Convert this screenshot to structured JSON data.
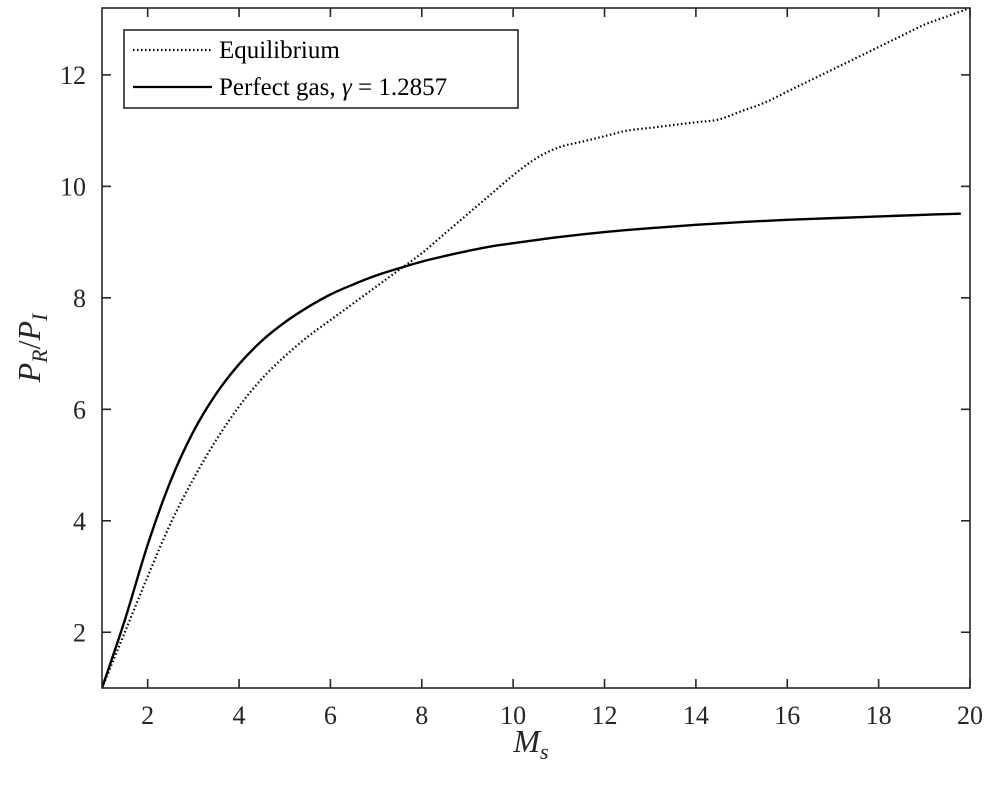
{
  "chart_data": {
    "type": "line",
    "title": "",
    "xlabel": {
      "main": "M",
      "sub": "s"
    },
    "ylabel": {
      "p1": "P",
      "s1": "R",
      "slash": "/",
      "p2": "P",
      "s2": "I"
    },
    "xlim": [
      1,
      20
    ],
    "ylim": [
      1,
      13.2
    ],
    "xticks": [
      2,
      4,
      6,
      8,
      10,
      12,
      14,
      16,
      18,
      20
    ],
    "yticks": [
      2,
      4,
      6,
      8,
      10,
      12
    ],
    "grid": false,
    "legend_position": "top-left",
    "series": [
      {
        "name": "Equilibrium",
        "style": "dotted",
        "color": "#000000",
        "x": [
          1.0,
          1.5,
          2.0,
          2.5,
          3.0,
          3.5,
          4.0,
          4.5,
          5.0,
          5.5,
          6.0,
          6.5,
          7.0,
          7.5,
          8.0,
          8.5,
          9.0,
          9.5,
          10.0,
          10.5,
          11.0,
          11.5,
          12.0,
          12.5,
          13.0,
          13.5,
          14.0,
          14.5,
          15.0,
          15.5,
          16.0,
          16.5,
          17.0,
          17.5,
          18.0,
          18.5,
          19.0,
          19.5,
          20.0
        ],
        "y": [
          1.0,
          2.0,
          3.0,
          3.95,
          4.75,
          5.45,
          6.05,
          6.55,
          6.95,
          7.3,
          7.6,
          7.9,
          8.2,
          8.5,
          8.8,
          9.15,
          9.5,
          9.85,
          10.2,
          10.5,
          10.7,
          10.8,
          10.9,
          11.0,
          11.05,
          11.1,
          11.15,
          11.2,
          11.35,
          11.5,
          11.7,
          11.9,
          12.1,
          12.3,
          12.5,
          12.7,
          12.9,
          13.05,
          13.2
        ]
      },
      {
        "name": "Perfect gas, ",
        "name_symbol": "γ",
        "name_eq": " = 1.2857",
        "style": "solid",
        "color": "#000000",
        "gamma": 1.2857,
        "x": [
          1.0,
          1.5,
          2.0,
          2.5,
          3.0,
          3.5,
          4.0,
          4.5,
          5.0,
          5.5,
          6.0,
          6.5,
          7.0,
          7.5,
          8.0,
          8.5,
          9.0,
          9.5,
          10.0,
          11.0,
          12.0,
          13.0,
          14.0,
          15.0,
          16.0,
          17.0,
          18.0,
          19.0,
          19.8
        ],
        "y": [
          1.0,
          2.22,
          3.57,
          4.71,
          5.6,
          6.28,
          6.81,
          7.23,
          7.56,
          7.83,
          8.06,
          8.24,
          8.4,
          8.53,
          8.65,
          8.75,
          8.84,
          8.92,
          8.98,
          9.09,
          9.18,
          9.25,
          9.31,
          9.36,
          9.4,
          9.43,
          9.46,
          9.49,
          9.51
        ]
      }
    ]
  }
}
